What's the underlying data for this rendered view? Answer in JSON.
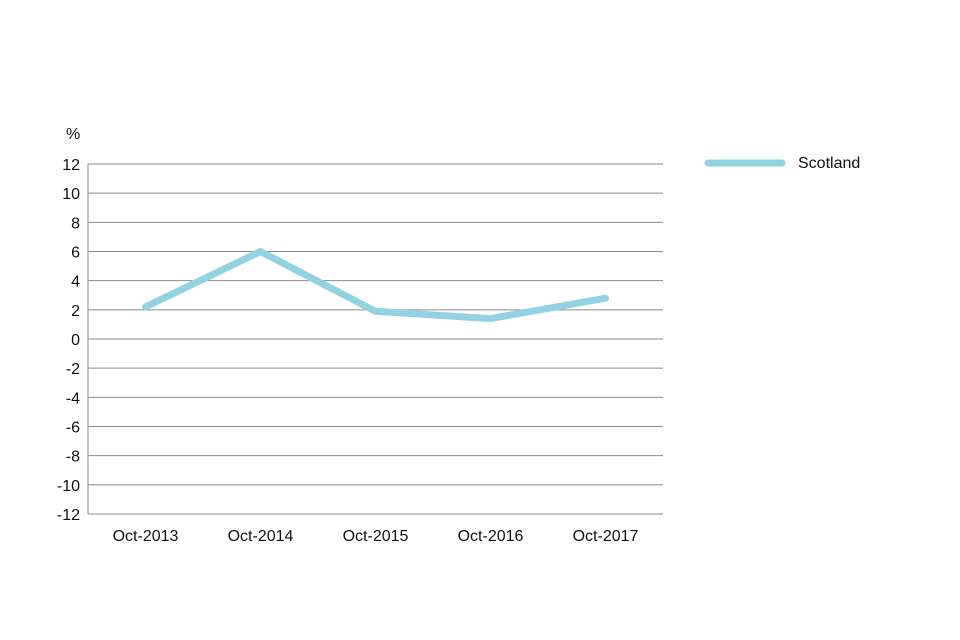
{
  "chart_data": {
    "type": "line",
    "title": "",
    "xlabel": "",
    "ylabel": "%",
    "categories": [
      "Oct-2013",
      "Oct-2014",
      "Oct-2015",
      "Oct-2016",
      "Oct-2017"
    ],
    "series": [
      {
        "name": "Scotland",
        "color": "#92d2e3",
        "values": [
          2.2,
          6.0,
          1.9,
          1.4,
          2.8
        ]
      }
    ],
    "ylim": [
      -12,
      12
    ],
    "yticks": [
      "12",
      "10",
      "8",
      "6",
      "4",
      "2",
      "0",
      "-2",
      "-4",
      "-6",
      "-8",
      "-10",
      "-12"
    ],
    "grid": true,
    "legend_position": "top-right"
  }
}
